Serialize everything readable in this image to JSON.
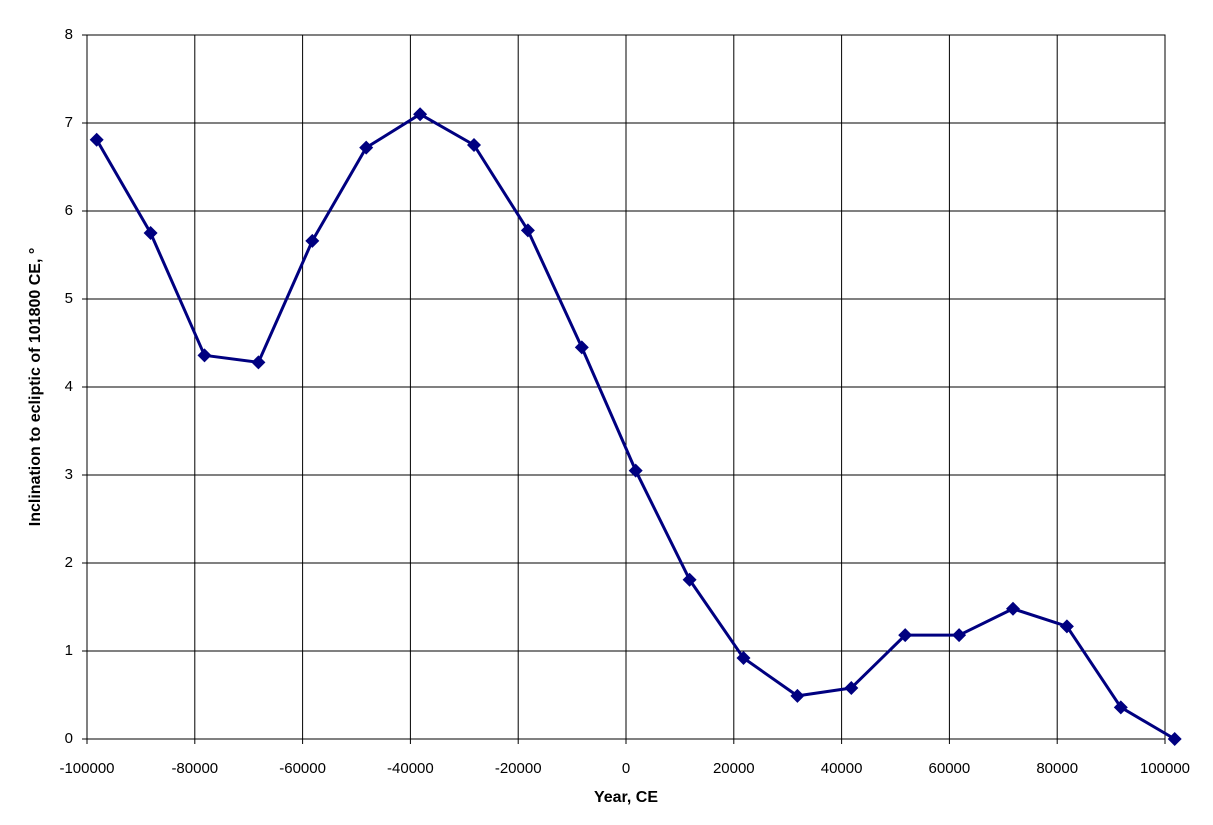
{
  "chart_data": {
    "type": "line",
    "x_label": "Year, CE",
    "y_label": "Inclination to ecliptic of 101800 CE, °",
    "x": [
      -98200,
      -88200,
      -78200,
      -68200,
      -58200,
      -48200,
      -38200,
      -28200,
      -18200,
      -8200,
      1800,
      11800,
      21800,
      31800,
      41800,
      51800,
      61800,
      71800,
      81800,
      91800,
      101800
    ],
    "series": [
      {
        "color": "#000080",
        "values": [
          6.81,
          5.75,
          4.36,
          4.28,
          5.66,
          6.72,
          7.1,
          6.75,
          5.78,
          4.45,
          3.05,
          1.81,
          0.92,
          0.49,
          0.58,
          1.18,
          1.18,
          1.48,
          1.28,
          0.36,
          0.0
        ]
      }
    ],
    "xlim": [
      -100000,
      100000
    ],
    "xticks": [
      -100000,
      -80000,
      -60000,
      -40000,
      -20000,
      0,
      20000,
      40000,
      60000,
      80000,
      100000
    ],
    "ylim": [
      0,
      8
    ],
    "yticks": [
      0,
      1,
      2,
      3,
      4,
      5,
      6,
      7,
      8
    ],
    "grid": true
  }
}
